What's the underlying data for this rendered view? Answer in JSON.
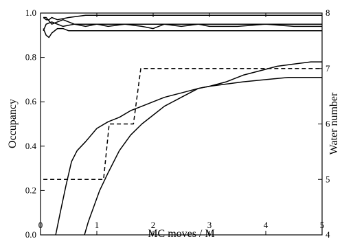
{
  "chart_data": {
    "type": "line",
    "title": "",
    "xlabel": "MC moves / M",
    "ylabel": "Occupancy",
    "y2label": "Water number",
    "xlim": [
      0,
      5
    ],
    "ylim": [
      0,
      1.0
    ],
    "y2lim": [
      4,
      8
    ],
    "grid": false,
    "legend": "none",
    "xticks": [
      0,
      1,
      2,
      3,
      4,
      5
    ],
    "yticks": [
      0.0,
      0.2,
      0.4,
      0.6,
      0.8,
      1.0
    ],
    "y2ticks": [
      4,
      5,
      6,
      7,
      8
    ],
    "xtick_labels": [
      "0",
      "1",
      "2",
      "3",
      "4",
      "5"
    ],
    "ytick_labels": [
      "0.0",
      "0.2",
      "0.4",
      "0.6",
      "0.8",
      "1.0"
    ],
    "y2tick_labels": [
      "4",
      "5",
      "6",
      "7",
      "8"
    ],
    "series": [
      {
        "axis": "left",
        "style": "solid",
        "x": [
          0.05,
          0.1,
          0.15,
          0.2,
          0.3,
          0.5,
          0.8,
          1.0,
          1.5,
          2.0,
          2.5,
          3.0,
          3.5,
          4.0,
          4.5,
          5.0
        ],
        "y": [
          0.98,
          0.97,
          0.97,
          0.98,
          0.97,
          0.98,
          0.99,
          0.99,
          0.99,
          0.99,
          0.99,
          0.99,
          0.99,
          0.99,
          0.99,
          0.99
        ]
      },
      {
        "axis": "left",
        "style": "solid",
        "x": [
          0.05,
          0.1,
          0.2,
          0.3,
          0.4,
          0.6,
          0.8,
          1.0,
          1.5,
          2.0,
          2.5,
          3.0,
          3.5,
          4.0,
          4.5,
          5.0
        ],
        "y": [
          0.98,
          0.98,
          0.95,
          0.96,
          0.97,
          0.95,
          0.95,
          0.95,
          0.95,
          0.95,
          0.95,
          0.95,
          0.95,
          0.95,
          0.95,
          0.95
        ]
      },
      {
        "axis": "left",
        "style": "solid",
        "x": [
          0.05,
          0.1,
          0.2,
          0.3,
          0.4,
          0.6,
          0.8,
          1.0,
          1.2,
          1.5,
          1.8,
          2.0,
          2.2,
          2.5,
          2.8,
          3.0,
          3.5,
          4.0,
          4.5,
          5.0
        ],
        "y": [
          0.92,
          0.95,
          0.96,
          0.95,
          0.94,
          0.95,
          0.94,
          0.95,
          0.94,
          0.95,
          0.94,
          0.93,
          0.95,
          0.94,
          0.95,
          0.94,
          0.94,
          0.95,
          0.94,
          0.94
        ]
      },
      {
        "axis": "left",
        "style": "solid",
        "x": [
          0.05,
          0.1,
          0.15,
          0.2,
          0.3,
          0.4,
          0.5,
          0.7,
          1.0,
          1.5,
          2.0,
          2.5,
          3.0,
          3.5,
          4.0,
          4.5,
          5.0
        ],
        "y": [
          0.93,
          0.9,
          0.89,
          0.91,
          0.93,
          0.93,
          0.92,
          0.92,
          0.92,
          0.92,
          0.92,
          0.92,
          0.92,
          0.92,
          0.92,
          0.92,
          0.92
        ]
      },
      {
        "axis": "left",
        "style": "solid",
        "x": [
          0.27,
          0.35,
          0.45,
          0.55,
          0.65,
          0.8,
          1.0,
          1.2,
          1.4,
          1.6,
          1.8,
          2.0,
          2.2,
          2.5,
          2.8,
          3.0,
          3.3,
          3.6,
          3.9,
          4.2,
          4.5,
          4.8,
          5.0
        ],
        "y": [
          0.0,
          0.1,
          0.22,
          0.33,
          0.38,
          0.42,
          0.48,
          0.51,
          0.53,
          0.56,
          0.58,
          0.6,
          0.62,
          0.64,
          0.66,
          0.67,
          0.69,
          0.72,
          0.74,
          0.76,
          0.77,
          0.78,
          0.78
        ]
      },
      {
        "axis": "left",
        "style": "solid",
        "x": [
          0.78,
          0.85,
          0.95,
          1.05,
          1.2,
          1.4,
          1.6,
          1.8,
          2.0,
          2.2,
          2.5,
          2.8,
          3.0,
          3.3,
          3.6,
          4.0,
          4.4,
          4.8,
          5.0
        ],
        "y": [
          0.0,
          0.06,
          0.13,
          0.2,
          0.28,
          0.38,
          0.45,
          0.5,
          0.54,
          0.58,
          0.62,
          0.66,
          0.67,
          0.68,
          0.69,
          0.7,
          0.71,
          0.71,
          0.71
        ]
      },
      {
        "axis": "right",
        "style": "dashed",
        "x": [
          0.05,
          1.12,
          1.22,
          1.65,
          1.78,
          5.0
        ],
        "y": [
          5,
          5,
          6,
          6,
          7,
          7
        ]
      }
    ]
  }
}
